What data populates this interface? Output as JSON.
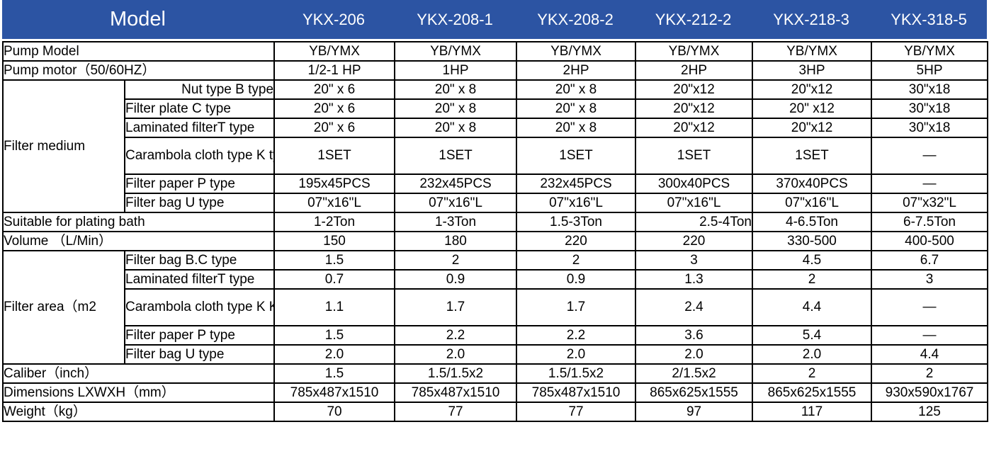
{
  "header": {
    "title": "Model",
    "models": [
      "YKX-206",
      "YKX-208-1",
      "YKX-208-2",
      "YKX-212-2",
      "YKX-218-3",
      "YKX-318-5"
    ]
  },
  "rows": {
    "pump_model": {
      "label": "Pump Model",
      "values": [
        "YB/YMX",
        "YB/YMX",
        "YB/YMX",
        "YB/YMX",
        "YB/YMX",
        "YB/YMX"
      ]
    },
    "pump_motor": {
      "label": "Pump motor（50/60HZ）",
      "values": [
        "1/2-1 HP",
        "1HP",
        "2HP",
        "2HP",
        "3HP",
        "5HP"
      ]
    },
    "filter_medium": {
      "label": "Filter medium",
      "subs": [
        {
          "label": "Nut type B type",
          "values": [
            "20\" x 6",
            "20\" x 8",
            "20\" x 8",
            "20\"x12",
            "20\"x12",
            "30\"x18"
          ]
        },
        {
          "label": "Filter plate C type",
          "values": [
            "20\" x 6",
            "20\" x 8",
            "20\" x 8",
            "20\"x12",
            "20\" x12",
            "30\"x18"
          ]
        },
        {
          "label": "Laminated filterT type",
          "values": [
            "20\" x 6",
            "20\" x 8",
            "20\" x 8",
            "20\"x12",
            "20\"x12",
            "30\"x18"
          ]
        },
        {
          "label": "Carambola cloth type K type",
          "values": [
            "1SET",
            "1SET",
            "1SET",
            "1SET",
            "1SET",
            "—"
          ]
        },
        {
          "label": "Filter paper P type",
          "values": [
            "195x45PCS",
            "232x45PCS",
            "232x45PCS",
            "300x40PCS",
            "370x40PCS",
            "—"
          ]
        },
        {
          "label": "Filter bag U type",
          "values": [
            "07\"x16\"L",
            "07\"x16\"L",
            "07\"x16\"L",
            "07\"x16\"L",
            "07\"x16\"L",
            "07\"x32\"L"
          ]
        }
      ]
    },
    "plating_bath": {
      "label": "Suitable for plating bath",
      "values": [
        "1-2Ton",
        "1-3Ton",
        "1.5-3Ton",
        "2.5-4Ton",
        "4-6.5Ton",
        "6-7.5Ton"
      ]
    },
    "volume": {
      "label": "Volume （L/Min）",
      "values": [
        "150",
        "180",
        "220",
        "220",
        "330-500",
        "400-500"
      ]
    },
    "filter_area": {
      "label": "Filter area（m2",
      "subs": [
        {
          "label": "Filter bag B.C type",
          "values": [
            "1.5",
            "2",
            "2",
            "3",
            "4.5",
            "6.7"
          ]
        },
        {
          "label": "Laminated filterT type",
          "values": [
            "0.7",
            "0.9",
            "0.9",
            "1.3",
            "2",
            "3"
          ]
        },
        {
          "label": "Carambola cloth type K K type",
          "values": [
            "1.1",
            "1.7",
            "1.7",
            "2.4",
            "4.4",
            "—"
          ]
        },
        {
          "label": "Filter paper P type",
          "values": [
            "1.5",
            "2.2",
            "2.2",
            "3.6",
            "5.4",
            "—"
          ]
        },
        {
          "label": "Filter bag U type",
          "values": [
            "2.0",
            "2.0",
            "2.0",
            "2.0",
            "2.0",
            "4.4"
          ]
        }
      ]
    },
    "caliber": {
      "label": "Caliber（inch）",
      "values": [
        "1.5",
        "1.5/1.5x2",
        "1.5/1.5x2",
        "2/1.5x2",
        "2",
        "2"
      ]
    },
    "dimensions": {
      "label": "Dimensions LXWXH（mm）",
      "values": [
        "785x487x1510",
        "785x487x1510",
        "785x487x1510",
        "865x625x1555",
        "865x625x1555",
        "930x590x1767"
      ]
    },
    "weight": {
      "label": "Weight（kg）",
      "values": [
        "70",
        "77",
        "77",
        "97",
        "117",
        "125"
      ]
    }
  },
  "colors": {
    "header_bg": "#2c54a3",
    "header_text": "#ffffff",
    "border": "#000000"
  }
}
